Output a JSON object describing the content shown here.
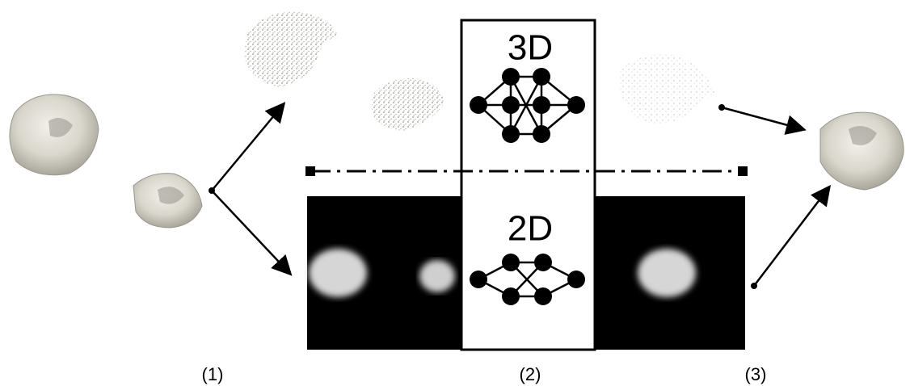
{
  "networks": {
    "top": "3D",
    "bottom": "2D"
  },
  "steps": [
    "(1)",
    "(2)",
    "(3)"
  ]
}
